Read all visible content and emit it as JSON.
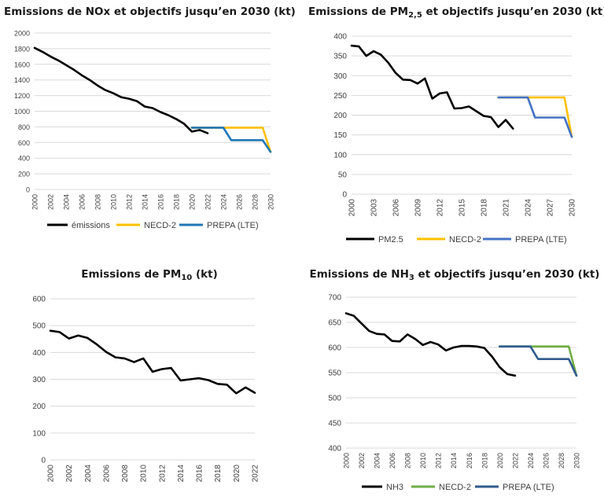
{
  "chart_data": [
    {
      "type": "line",
      "title": "Emissions de NOx et objectifs jusqu’en 2030 (kt)",
      "y_ticks": [
        "0",
        "200",
        "400",
        "600",
        "800",
        "1000",
        "1200",
        "1400",
        "1600",
        "1800",
        "2000"
      ],
      "ylim": [
        0,
        2000
      ],
      "x_ticks": [
        "2000",
        "2002",
        "2004",
        "2006",
        "2008",
        "2010",
        "2012",
        "2014",
        "2016",
        "2018",
        "2020",
        "2022",
        "2024",
        "2026",
        "2028",
        "2030"
      ],
      "xlim": [
        2000,
        2030
      ],
      "grid": true,
      "legend_position": "bottom",
      "series": [
        {
          "name": "émissions",
          "color": "#000000",
          "x": [
            2000,
            2001,
            2002,
            2003,
            2004,
            2005,
            2006,
            2007,
            2008,
            2009,
            2010,
            2011,
            2012,
            2013,
            2014,
            2015,
            2016,
            2017,
            2018,
            2019,
            2020,
            2021,
            2022
          ],
          "y": [
            1810,
            1760,
            1700,
            1650,
            1590,
            1530,
            1460,
            1400,
            1330,
            1270,
            1230,
            1180,
            1160,
            1130,
            1060,
            1040,
            990,
            950,
            900,
            840,
            740,
            760,
            720
          ]
        },
        {
          "name": "NECD-2",
          "color": "#FFC000",
          "x": [
            2020,
            2029,
            2030
          ],
          "y": [
            790,
            790,
            480
          ]
        },
        {
          "name": "PREPA (LTE)",
          "color": "#1F77B4",
          "x": [
            2020,
            2024,
            2025,
            2029,
            2030
          ],
          "y": [
            790,
            790,
            630,
            630,
            480
          ]
        }
      ]
    },
    {
      "type": "line",
      "title_parts": [
        "Emissions de PM",
        "2,5",
        " et objectifs jusqu’en 2030 (kt)"
      ],
      "y_ticks": [
        "0",
        "50",
        "100",
        "150",
        "200",
        "250",
        "300",
        "350",
        "400"
      ],
      "ylim": [
        0,
        400
      ],
      "x_ticks": [
        "2000",
        "2003",
        "2006",
        "2009",
        "2012",
        "2015",
        "2018",
        "2021",
        "2024",
        "2027",
        "2030"
      ],
      "xlim": [
        2000,
        2030
      ],
      "grid": true,
      "legend_position": "bottom",
      "series": [
        {
          "name": "PM2.5",
          "color": "#000000",
          "x": [
            2000,
            2001,
            2002,
            2003,
            2004,
            2005,
            2006,
            2007,
            2008,
            2009,
            2010,
            2011,
            2012,
            2013,
            2014,
            2015,
            2016,
            2017,
            2018,
            2019,
            2020,
            2021,
            2022
          ],
          "y": [
            376,
            374,
            350,
            362,
            353,
            333,
            307,
            290,
            289,
            280,
            293,
            242,
            255,
            258,
            217,
            218,
            222,
            210,
            198,
            195,
            170,
            188,
            166
          ]
        },
        {
          "name": "NECD-2",
          "color": "#FFC000",
          "x": [
            2020,
            2029,
            2030
          ],
          "y": [
            245,
            245,
            145
          ]
        },
        {
          "name": "PREPA (LTE)",
          "color": "#4472C4",
          "x": [
            2020,
            2024,
            2025,
            2029,
            2030
          ],
          "y": [
            245,
            245,
            194,
            194,
            145
          ]
        }
      ]
    },
    {
      "type": "line",
      "title_parts": [
        "Emissions de PM",
        "10",
        " (kt)"
      ],
      "y_ticks": [
        "0",
        "100",
        "200",
        "300",
        "400",
        "500",
        "600"
      ],
      "ylim": [
        0,
        600
      ],
      "x_ticks": [
        "2000",
        "2002",
        "2004",
        "2006",
        "2008",
        "2010",
        "2012",
        "2014",
        "2016",
        "2018",
        "2020",
        "2022"
      ],
      "xlim": [
        2000,
        2022
      ],
      "grid": true,
      "series": [
        {
          "color": "#000000",
          "x": [
            2000,
            2001,
            2002,
            2003,
            2004,
            2005,
            2006,
            2007,
            2008,
            2009,
            2010,
            2011,
            2012,
            2013,
            2014,
            2015,
            2016,
            2017,
            2018,
            2019,
            2020,
            2021,
            2022
          ],
          "y": [
            481,
            476,
            452,
            463,
            454,
            430,
            402,
            382,
            378,
            364,
            378,
            328,
            338,
            342,
            296,
            300,
            304,
            297,
            283,
            280,
            248,
            270,
            250
          ]
        }
      ]
    },
    {
      "type": "line",
      "title_parts": [
        "Emissions de NH",
        "3",
        " et objectifs jusqu’en 2030 (kt)"
      ],
      "y_ticks": [
        "400",
        "450",
        "500",
        "550",
        "600",
        "650",
        "700"
      ],
      "ylim": [
        400,
        700
      ],
      "x_ticks": [
        "2000",
        "2002",
        "2004",
        "2006",
        "2008",
        "2010",
        "2012",
        "2014",
        "2016",
        "2018",
        "2020",
        "2022",
        "2024",
        "2026",
        "2028",
        "2030"
      ],
      "xlim": [
        2000,
        2030
      ],
      "grid": true,
      "legend_position": "bottom",
      "series": [
        {
          "name": "NH3",
          "color": "#000000",
          "x": [
            2000,
            2001,
            2002,
            2003,
            2004,
            2005,
            2006,
            2007,
            2008,
            2009,
            2010,
            2011,
            2012,
            2013,
            2014,
            2015,
            2016,
            2017,
            2018,
            2019,
            2020,
            2021,
            2022
          ],
          "y": [
            668,
            663,
            648,
            633,
            627,
            626,
            613,
            612,
            626,
            617,
            605,
            611,
            606,
            594,
            600,
            603,
            603,
            602,
            599,
            582,
            561,
            547,
            544
          ]
        },
        {
          "name": "NECD-2",
          "color": "#70AD47",
          "x": [
            2020,
            2029,
            2030
          ],
          "y": [
            602,
            602,
            544
          ]
        },
        {
          "name": "PREPA (LTE)",
          "color": "#2F5C8C",
          "x": [
            2020,
            2024,
            2025,
            2029,
            2030
          ],
          "y": [
            602,
            602,
            577,
            577,
            544
          ]
        }
      ]
    }
  ]
}
